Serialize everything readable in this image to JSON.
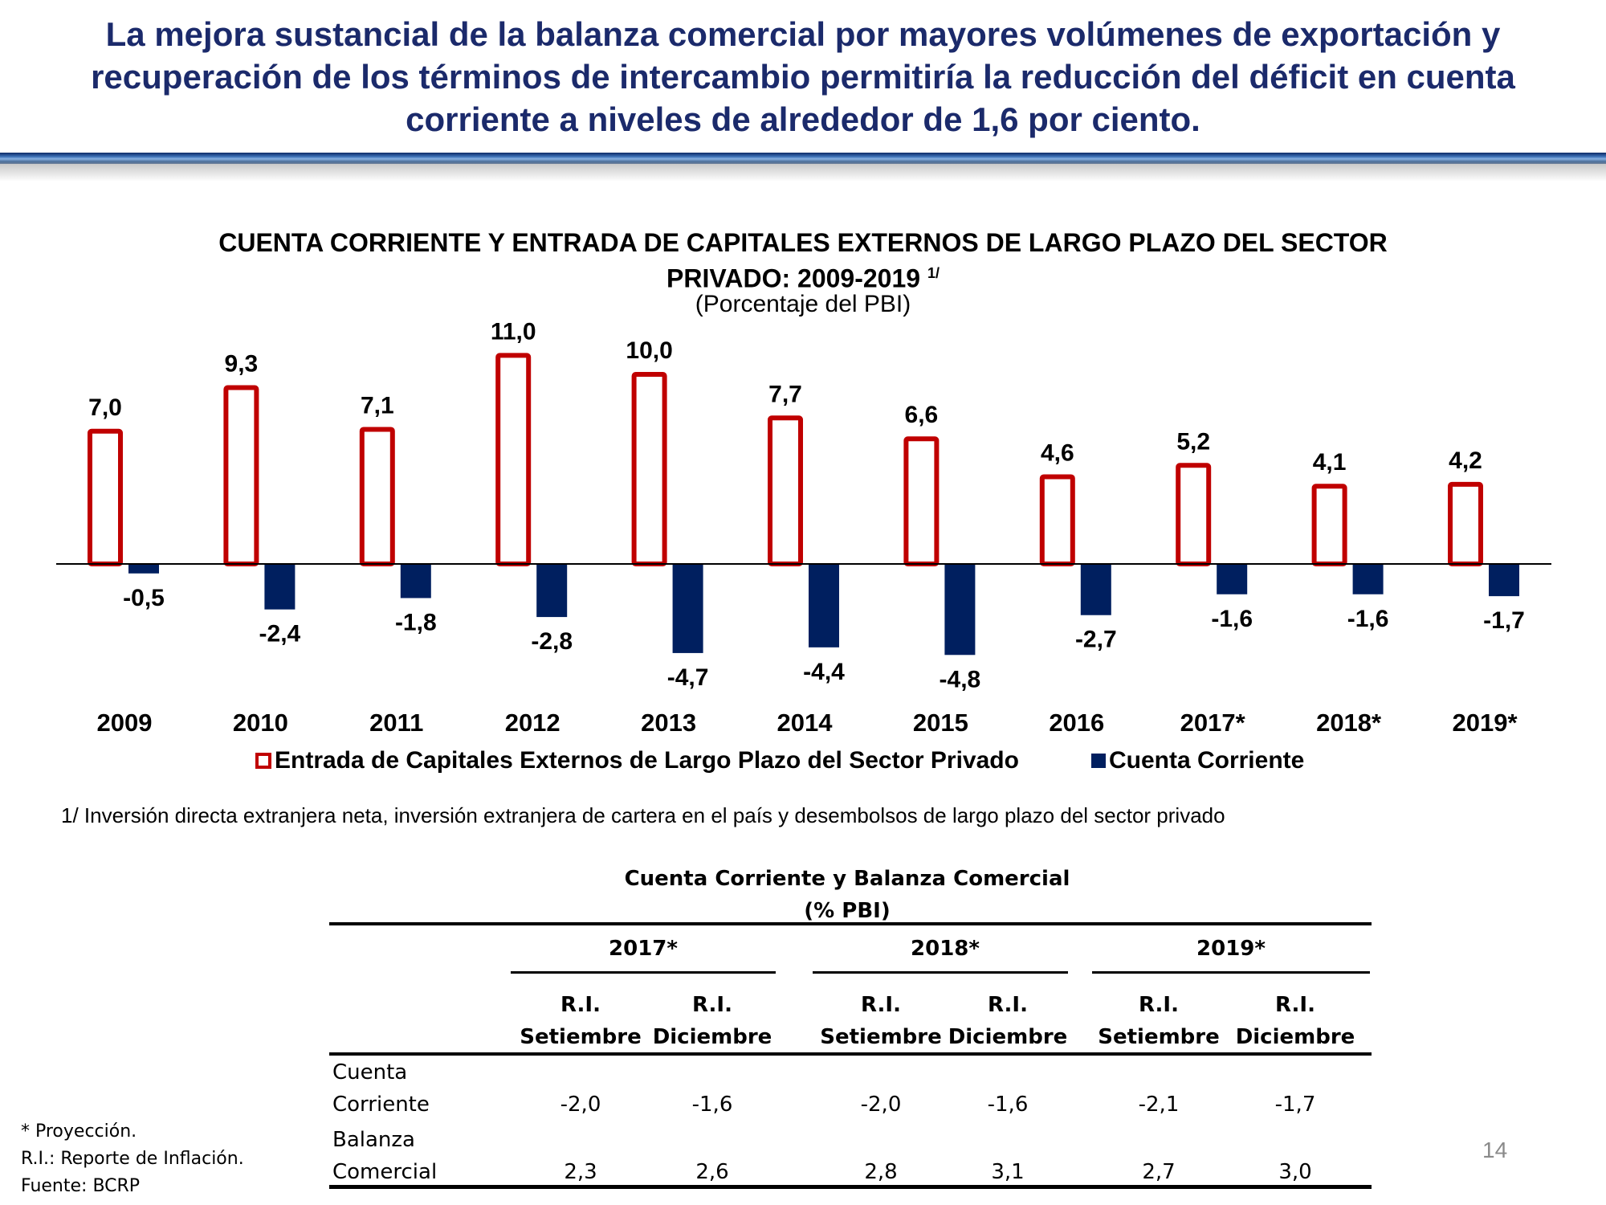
{
  "headline": "La mejora sustancial de la balanza comercial por mayores volúmenes de exportación y recuperación de los términos de intercambio permitiría la reducción del déficit en cuenta corriente a niveles de alrededor de 1,6 por ciento.",
  "chart_data": {
    "type": "bar",
    "title_line1": "CUENTA CORRIENTE Y ENTRADA DE CAPITALES EXTERNOS DE LARGO PLAZO DEL SECTOR",
    "title_line2": "PRIVADO: 2009-2019",
    "title_note": "1/",
    "subtitle": "(Porcentaje del PBI)",
    "xlabel": "",
    "ylabel": "",
    "ylim": [
      -5,
      11
    ],
    "grid": false,
    "legend_position": "bottom",
    "categories": [
      "2009",
      "2010",
      "2011",
      "2012",
      "2013",
      "2014",
      "2015",
      "2016",
      "2017*",
      "2018*",
      "2019*"
    ],
    "series": [
      {
        "name": "Entrada de Capitales Externos de Largo Plazo del Sector Privado",
        "color": "#c00000",
        "style": "outline",
        "values": [
          7.0,
          9.3,
          7.1,
          11.0,
          10.0,
          7.7,
          6.6,
          4.6,
          5.2,
          4.1,
          4.2
        ],
        "labels": [
          "7,0",
          "9,3",
          "7,1",
          "11,0",
          "10,0",
          "7,7",
          "6,6",
          "4,6",
          "5,2",
          "4,1",
          "4,2"
        ]
      },
      {
        "name": "Cuenta Corriente",
        "color": "#001f5f",
        "style": "filled",
        "values": [
          -0.5,
          -2.4,
          -1.8,
          -2.8,
          -4.7,
          -4.4,
          -4.8,
          -2.7,
          -1.6,
          -1.6,
          -1.7
        ],
        "labels": [
          "-0,5",
          "-2,4",
          "-1,8",
          "-2,8",
          "-4,7",
          "-4,4",
          "-4,8",
          "-2,7",
          "-1,6",
          "-1,6",
          "-1,7"
        ]
      }
    ],
    "footnote": "1/ Inversión directa extranjera neta, inversión extranjera de cartera en el país  y desembolsos de largo plazo del sector privado"
  },
  "table": {
    "title": "Cuenta Corriente y Balanza Comercial",
    "subtitle": "(% PBI)",
    "years": [
      "2017*",
      "2018*",
      "2019*"
    ],
    "col_top": "R.I.",
    "col_names": [
      "Setiembre",
      "Diciembre"
    ],
    "rows": [
      {
        "label1": "Cuenta",
        "label2": "Corriente",
        "values": [
          "-2,0",
          "-1,6",
          "-2,0",
          "-1,6",
          "-2,1",
          "-1,7"
        ]
      },
      {
        "label1": "Balanza",
        "label2": "Comercial",
        "values": [
          "2,3",
          "2,6",
          "2,8",
          "3,1",
          "2,7",
          "3,0"
        ]
      }
    ]
  },
  "notes": [
    "* Proyección.",
    "R.I.: Reporte de Inflación.",
    "Fuente: BCRP"
  ],
  "page_number": "14"
}
